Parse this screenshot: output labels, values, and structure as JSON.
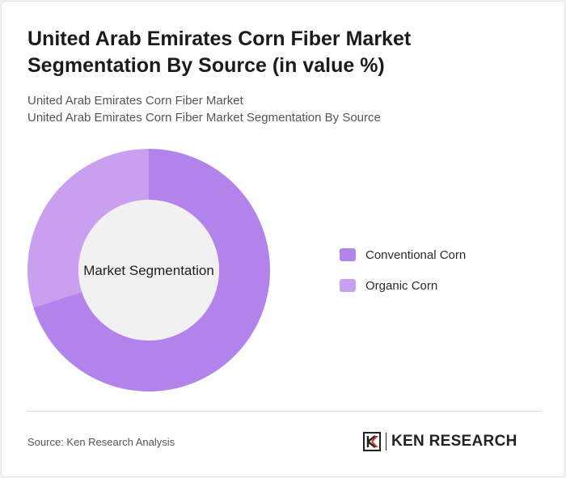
{
  "title": "United Arab Emirates Corn Fiber Market Segmentation By Source (in value %)",
  "subtitle_lines": [
    "United Arab Emirates Corn Fiber Market",
    "United Arab Emirates Corn Fiber Market Segmentation By Source"
  ],
  "chart_data": {
    "type": "pie",
    "center_label": "Market Segmentation",
    "categories": [
      "Conventional Corn",
      "Organic Corn"
    ],
    "values": [
      70,
      30
    ],
    "colors": [
      "#b383ec",
      "#c9a0f0"
    ],
    "hole_color": "#f2f1f2",
    "legend_position": "right"
  },
  "source": "Source: Ken Research Analysis",
  "logo": {
    "text": "KEN RESEARCH",
    "icon": "ken-research-logo-icon"
  }
}
